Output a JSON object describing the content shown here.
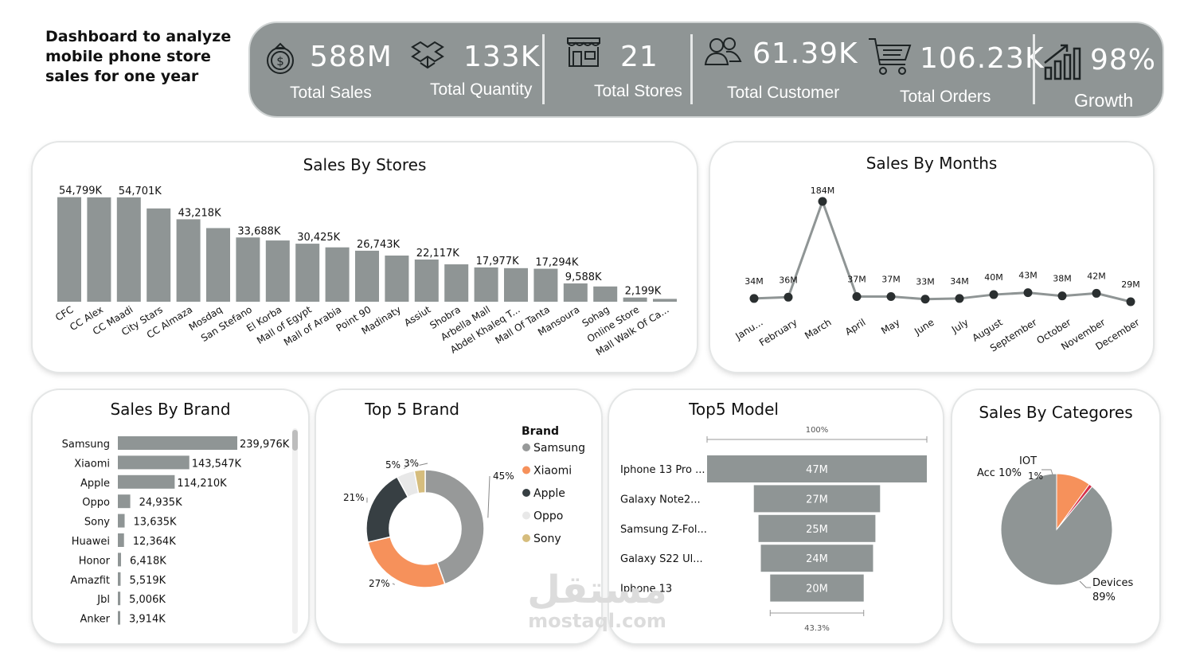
{
  "title": "Dashboard to analyze mobile phone store sales for one year",
  "kpis": [
    {
      "value": "588M",
      "label": "Total Sales",
      "icon": "money-bag-icon"
    },
    {
      "value": "133K",
      "label": "Total Quantity",
      "icon": "boxes-icon"
    },
    {
      "value": "21",
      "label": "Total Stores",
      "icon": "store-icon"
    },
    {
      "value": "61.39K",
      "label": "Total Customer",
      "icon": "customers-icon"
    },
    {
      "value": "106.23K",
      "label": "Total Orders",
      "icon": "shopping-cart-icon"
    },
    {
      "value": "98%",
      "label": "Growth",
      "icon": "growth-chart-icon"
    }
  ],
  "colors": {
    "gray": "#8f9595",
    "orange": "#f6915b",
    "dark": "#373f43",
    "light": "#e8e8e8",
    "gold": "#d6bd7d",
    "red": "#d6324b",
    "pink": "#e86a8b"
  },
  "chart_data": [
    {
      "type": "bar",
      "title": "Sales By Stores",
      "categories": [
        "CFC",
        "CC Alex",
        "CC Maadi",
        "City Stars",
        "CC Almaza",
        "Mosdaq",
        "San Stefano",
        "El Korba",
        "Mall of Egypt",
        "Mall of Arabia",
        "Point 90",
        "Madinaty",
        "Assiut",
        "Shobra",
        "Arbella Mall",
        "Abdel Khaleq T...",
        "Mall Of Tanta",
        "Mansoura",
        "Sohag",
        "Online Store",
        "Mall Walk Of Ca..."
      ],
      "values": [
        54799,
        54701,
        54701,
        48900,
        43218,
        38600,
        33688,
        32100,
        30425,
        28500,
        26743,
        24200,
        22117,
        19600,
        17977,
        17600,
        17294,
        9588,
        8000,
        2199,
        1500
      ],
      "data_labels": [
        "54,799K",
        "",
        "54,701K",
        "",
        "43,218K",
        "",
        "33,688K",
        "",
        "30,425K",
        "",
        "26,743K",
        "",
        "22,117K",
        "",
        "17,977K",
        "",
        "17,294K",
        "9,588K",
        "",
        "2,199K",
        ""
      ],
      "ylim": [
        0,
        60000
      ],
      "color": "#8f9595"
    },
    {
      "type": "line",
      "title": "Sales By Months",
      "categories": [
        "Janu...",
        "February",
        "March",
        "April",
        "May",
        "June",
        "July",
        "August",
        "September",
        "October",
        "November",
        "December"
      ],
      "values": [
        34,
        36,
        184,
        37,
        37,
        33,
        34,
        40,
        43,
        38,
        42,
        29
      ],
      "data_labels": [
        "34M",
        "36M",
        "184M",
        "37M",
        "37M",
        "33M",
        "34M",
        "40M",
        "43M",
        "38M",
        "42M",
        "29M"
      ],
      "unit": "M",
      "color": "#8f9595"
    },
    {
      "type": "bar",
      "orientation": "horizontal",
      "title": "Sales By Brand",
      "categories": [
        "Samsung",
        "Xiaomi",
        "Apple",
        "Oppo",
        "Sony",
        "Huawei",
        "Honor",
        "Amazfit",
        "Jbl",
        "Anker"
      ],
      "values": [
        239976,
        143547,
        114210,
        24935,
        13635,
        12364,
        6418,
        5519,
        5006,
        3914
      ],
      "data_labels": [
        "239,976K",
        "143,547K",
        "114,210K",
        "24,935K",
        "13,635K",
        "12,364K",
        "6,418K",
        "5,519K",
        "5,006K",
        "3,914K"
      ],
      "color": "#8f9595"
    },
    {
      "type": "pie",
      "variant": "donut",
      "title": "Top 5 Brand",
      "legend_title": "Brand",
      "categories": [
        "Samsung",
        "Xiaomi",
        "Apple",
        "Oppo",
        "Sony"
      ],
      "values": [
        45,
        27,
        21,
        5,
        3
      ],
      "data_labels": [
        "45%",
        "27%",
        "21%",
        "5%",
        "3%"
      ],
      "colors": [
        "#979999",
        "#f6915b",
        "#373f43",
        "#e8e8e8",
        "#d6bd7d"
      ]
    },
    {
      "type": "bar",
      "variant": "funnel",
      "title": "Top5 Model",
      "categories": [
        "Iphone 13 Pro ...",
        "Galaxy Note2...",
        "Samsung Z-Fol...",
        "Galaxy S22 Ul...",
        "Iphone 13"
      ],
      "values": [
        47,
        27,
        25,
        24,
        20
      ],
      "data_labels": [
        "47M",
        "27M",
        "25M",
        "24M",
        "20M"
      ],
      "top_percent_label": "100%",
      "bottom_percent_label": "43.3%",
      "color": "#8f9595"
    },
    {
      "type": "pie",
      "title": "Sales By Categores",
      "categories": [
        "Devices",
        "Acc",
        "IOT"
      ],
      "values": [
        89,
        10,
        1
      ],
      "label_texts": [
        "Devices",
        "Acc 10%",
        "IOT"
      ],
      "percent_texts": [
        "89%",
        "",
        "1%"
      ],
      "colors": [
        "#8f9595",
        "#f6915b",
        "#d6324b"
      ]
    }
  ],
  "watermark": {
    "arabic": "مستقل",
    "latin": "mostaql.com"
  }
}
